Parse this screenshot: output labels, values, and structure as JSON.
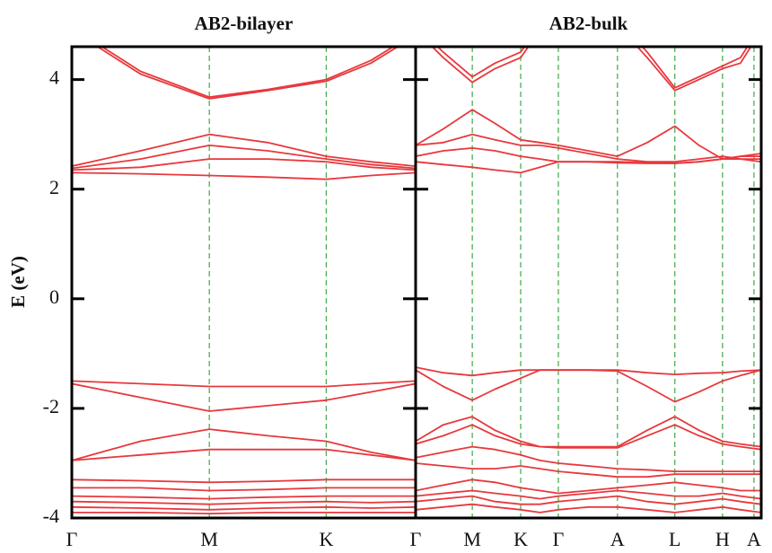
{
  "chart_data": [
    {
      "type": "line",
      "title": "AB2-bilayer",
      "ylabel": "E (eV)",
      "color": "#e8383d",
      "grid_color": "#4caf50",
      "xlim": [
        0,
        1
      ],
      "xticks": [
        {
          "value": 0,
          "label": "Γ"
        },
        {
          "value": 0.4,
          "label": "M"
        },
        {
          "value": 0.74,
          "label": "K"
        }
      ],
      "ylim": [
        -4,
        4.6
      ],
      "yticks": [
        -4,
        -2,
        0,
        2,
        4
      ],
      "show_ytick_labels": true,
      "x": [
        0,
        0.2,
        0.4,
        0.57,
        0.74,
        0.87,
        1
      ],
      "series": [
        {
          "values": [
            4.9,
            4.1,
            3.65,
            3.8,
            3.97,
            4.3,
            4.8
          ]
        },
        {
          "values": [
            4.95,
            4.15,
            3.68,
            3.82,
            4.0,
            4.35,
            4.85
          ]
        },
        {
          "values": [
            2.42,
            2.7,
            3.0,
            2.85,
            2.6,
            2.5,
            2.42
          ]
        },
        {
          "values": [
            2.38,
            2.55,
            2.8,
            2.7,
            2.55,
            2.45,
            2.38
          ]
        },
        {
          "values": [
            2.35,
            2.4,
            2.55,
            2.55,
            2.5,
            2.4,
            2.35
          ]
        },
        {
          "values": [
            2.3,
            2.28,
            2.25,
            2.22,
            2.18,
            2.25,
            2.3
          ]
        },
        {
          "values": [
            -1.5,
            -1.55,
            -1.6,
            -1.6,
            -1.6,
            -1.55,
            -1.5
          ]
        },
        {
          "values": [
            -1.55,
            -1.8,
            -2.05,
            -1.95,
            -1.85,
            -1.7,
            -1.55
          ]
        },
        {
          "values": [
            -2.95,
            -2.6,
            -2.38,
            -2.5,
            -2.6,
            -2.8,
            -2.95
          ]
        },
        {
          "values": [
            -2.95,
            -2.85,
            -2.75,
            -2.75,
            -2.75,
            -2.85,
            -2.95
          ]
        },
        {
          "values": [
            -3.3,
            -3.32,
            -3.35,
            -3.33,
            -3.3,
            -3.3,
            -3.3
          ]
        },
        {
          "values": [
            -3.45,
            -3.45,
            -3.5,
            -3.48,
            -3.45,
            -3.45,
            -3.45
          ]
        },
        {
          "values": [
            -3.6,
            -3.62,
            -3.65,
            -3.62,
            -3.6,
            -3.6,
            -3.6
          ]
        },
        {
          "values": [
            -3.7,
            -3.72,
            -3.75,
            -3.72,
            -3.7,
            -3.72,
            -3.7
          ]
        },
        {
          "values": [
            -3.8,
            -3.82,
            -3.85,
            -3.82,
            -3.8,
            -3.82,
            -3.8
          ]
        },
        {
          "values": [
            -3.9,
            -3.9,
            -3.92,
            -3.9,
            -3.9,
            -3.9,
            -3.9
          ]
        }
      ]
    },
    {
      "type": "line",
      "title": "AB2-bulk",
      "color": "#e8383d",
      "grid_color": "#4caf50",
      "xlim": [
        0,
        1
      ],
      "xticks": [
        {
          "value": 0,
          "label": "Γ"
        },
        {
          "value": 0.164,
          "label": "M"
        },
        {
          "value": 0.304,
          "label": "K"
        },
        {
          "value": 0.413,
          "label": "Γ"
        },
        {
          "value": 0.584,
          "label": "A"
        },
        {
          "value": 0.75,
          "label": "L"
        },
        {
          "value": 0.888,
          "label": "H"
        },
        {
          "value": 0.979,
          "label": "A"
        }
      ],
      "ylim": [
        -4,
        4.6
      ],
      "yticks": [
        -4,
        -2,
        0,
        2,
        4
      ],
      "show_ytick_labels": false,
      "x": [
        0,
        0.08,
        0.164,
        0.23,
        0.304,
        0.36,
        0.413,
        0.5,
        0.584,
        0.67,
        0.75,
        0.82,
        0.888,
        0.94,
        1
      ],
      "series": [
        {
          "values": [
            4.9,
            4.4,
            3.95,
            4.2,
            4.4,
            4.9,
            5.2,
            5.2,
            5.0,
            4.4,
            3.8,
            4.0,
            4.2,
            4.3,
            4.9
          ]
        },
        {
          "values": [
            5.0,
            4.5,
            4.05,
            4.3,
            4.5,
            5.0,
            5.3,
            5.3,
            5.1,
            4.5,
            3.85,
            4.05,
            4.25,
            4.4,
            5.0
          ]
        },
        {
          "values": [
            2.8,
            3.1,
            3.45,
            3.2,
            2.9,
            2.85,
            2.8,
            2.7,
            2.6,
            2.85,
            3.15,
            2.8,
            2.55,
            2.55,
            2.5
          ]
        },
        {
          "values": [
            2.8,
            2.85,
            3.0,
            2.9,
            2.8,
            2.8,
            2.75,
            2.65,
            2.55,
            2.5,
            2.5,
            2.55,
            2.6,
            2.55,
            2.55
          ]
        },
        {
          "values": [
            2.6,
            2.7,
            2.75,
            2.7,
            2.6,
            2.55,
            2.5,
            2.5,
            2.5,
            2.48,
            2.47,
            2.5,
            2.55,
            2.6,
            2.6
          ]
        },
        {
          "values": [
            2.5,
            2.45,
            2.4,
            2.35,
            2.3,
            2.4,
            2.5,
            2.5,
            2.48,
            2.47,
            2.47,
            2.5,
            2.55,
            2.6,
            2.65
          ]
        },
        {
          "values": [
            -1.25,
            -1.35,
            -1.4,
            -1.35,
            -1.3,
            -1.3,
            -1.3,
            -1.3,
            -1.3,
            -1.35,
            -1.38,
            -1.36,
            -1.35,
            -1.32,
            -1.3
          ]
        },
        {
          "values": [
            -1.3,
            -1.6,
            -1.85,
            -1.65,
            -1.45,
            -1.3,
            -1.3,
            -1.3,
            -1.32,
            -1.6,
            -1.88,
            -1.7,
            -1.5,
            -1.4,
            -1.3
          ]
        },
        {
          "values": [
            -2.6,
            -2.3,
            -2.15,
            -2.4,
            -2.6,
            -2.7,
            -2.7,
            -2.7,
            -2.7,
            -2.4,
            -2.15,
            -2.4,
            -2.6,
            -2.65,
            -2.7
          ]
        },
        {
          "values": [
            -2.65,
            -2.5,
            -2.3,
            -2.5,
            -2.65,
            -2.7,
            -2.72,
            -2.72,
            -2.72,
            -2.5,
            -2.3,
            -2.5,
            -2.65,
            -2.7,
            -2.75
          ]
        },
        {
          "values": [
            -2.9,
            -2.8,
            -2.7,
            -2.75,
            -2.85,
            -2.95,
            -3.0,
            -3.05,
            -3.1,
            -3.12,
            -3.15,
            -3.15,
            -3.15,
            -3.15,
            -3.15
          ]
        },
        {
          "values": [
            -3.0,
            -3.05,
            -3.1,
            -3.1,
            -3.05,
            -3.1,
            -3.15,
            -3.2,
            -3.25,
            -3.25,
            -3.2,
            -3.2,
            -3.2,
            -3.2,
            -3.2
          ]
        },
        {
          "values": [
            -3.5,
            -3.4,
            -3.3,
            -3.35,
            -3.45,
            -3.5,
            -3.55,
            -3.5,
            -3.45,
            -3.4,
            -3.35,
            -3.4,
            -3.45,
            -3.5,
            -3.5
          ]
        },
        {
          "values": [
            -3.6,
            -3.55,
            -3.5,
            -3.55,
            -3.6,
            -3.65,
            -3.6,
            -3.55,
            -3.5,
            -3.55,
            -3.6,
            -3.6,
            -3.55,
            -3.6,
            -3.65
          ]
        },
        {
          "values": [
            -3.7,
            -3.65,
            -3.6,
            -3.7,
            -3.75,
            -3.75,
            -3.7,
            -3.65,
            -3.6,
            -3.7,
            -3.75,
            -3.7,
            -3.65,
            -3.7,
            -3.75
          ]
        },
        {
          "values": [
            -3.85,
            -3.8,
            -3.75,
            -3.8,
            -3.85,
            -3.9,
            -3.85,
            -3.8,
            -3.8,
            -3.85,
            -3.9,
            -3.85,
            -3.8,
            -3.85,
            -3.9
          ]
        }
      ]
    }
  ]
}
